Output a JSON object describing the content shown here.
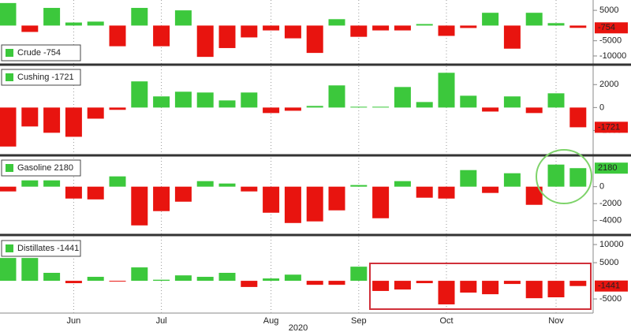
{
  "chart_data": [
    {
      "type": "bar",
      "positive_color": "#3cc83c",
      "negative_color": "#e8140f",
      "ylim": [
        -12600,
        8400
      ],
      "yticks": [
        5000,
        -5000,
        -10000
      ],
      "series": [
        {
          "name": "Crude",
          "values": [
            7400,
            -2100,
            5800,
            1000,
            1300,
            -6800,
            5800,
            -6800,
            5000,
            -10300,
            -7400,
            -3900,
            -1600,
            -4200,
            -9000,
            2100,
            -3700,
            -1600,
            -1600,
            500,
            -3400,
            -800,
            4200,
            -7600,
            4200,
            800,
            -754
          ]
        }
      ]
    },
    {
      "type": "bar",
      "positive_color": "#3cc83c",
      "negative_color": "#e8140f",
      "ylim": [
        -4100,
        3600
      ],
      "yticks": [
        2000,
        0,
        -2000
      ],
      "series": [
        {
          "name": "Cushing",
          "values": [
            -3400,
            -1650,
            -2200,
            -2550,
            -970,
            -200,
            2280,
            970,
            1380,
            1310,
            620,
            1310,
            -480,
            -280,
            140,
            1930,
            70,
            70,
            1790,
            480,
            3030,
            1030,
            -350,
            970,
            -480,
            1240,
            -1721
          ]
        }
      ]
    },
    {
      "type": "bar",
      "positive_color": "#3cc83c",
      "negative_color": "#e8140f",
      "ylim": [
        -5600,
        3500
      ],
      "yticks": [
        0,
        -2000,
        -4000
      ],
      "series": [
        {
          "name": "Gasoline",
          "values": [
            -560,
            740,
            740,
            -1400,
            -1500,
            1210,
            -4560,
            -2880,
            -1770,
            650,
            370,
            -560,
            -3070,
            -4280,
            -4090,
            -2790,
            190,
            -3720,
            650,
            -1300,
            -1400,
            1950,
            -740,
            1580,
            -2140,
            2600,
            2180
          ]
        }
      ]
    },
    {
      "type": "bar",
      "positive_color": "#3cc83c",
      "negative_color": "#e8140f",
      "ylim": [
        -8900,
        12200
      ],
      "yticks": [
        10000,
        5000,
        -5000
      ],
      "xlabel": "2020",
      "categories": [
        null,
        null,
        null,
        "Jun",
        null,
        null,
        null,
        "Jul",
        null,
        null,
        null,
        null,
        "Aug",
        null,
        null,
        null,
        "Sep",
        null,
        null,
        null,
        "Oct",
        null,
        null,
        null,
        null,
        "Nov",
        null
      ],
      "series": [
        {
          "name": "Distillates",
          "values": [
            6300,
            6300,
            2200,
            -650,
            1100,
            -220,
            3700,
            300,
            1500,
            1100,
            2200,
            -1700,
            650,
            1700,
            -1100,
            -1100,
            3900,
            -2800,
            -2400,
            -650,
            -6500,
            -3250,
            -3700,
            -870,
            -4800,
            -4550,
            -1441
          ]
        }
      ]
    }
  ]
}
